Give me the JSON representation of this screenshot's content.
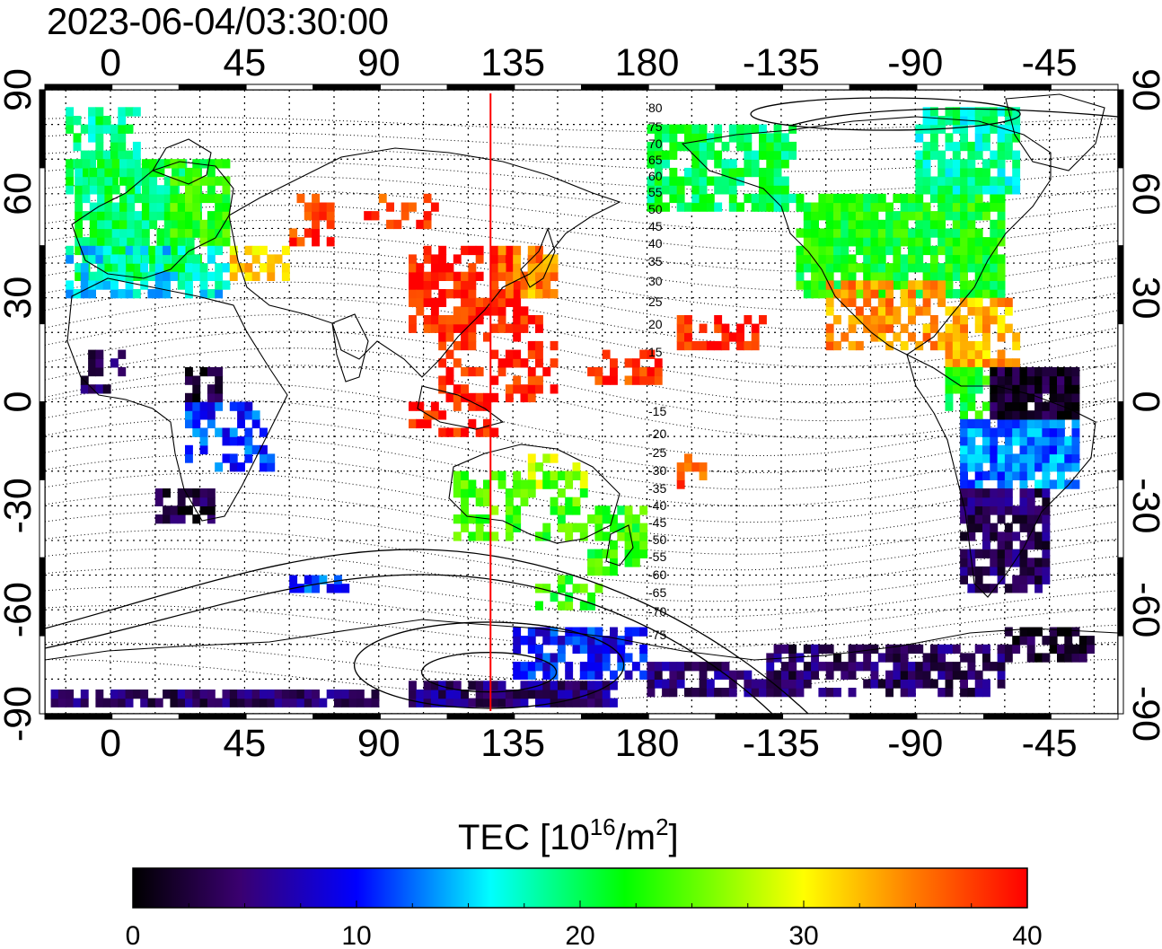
{
  "timestamp": "2023-06-04/03:30:00",
  "colorbar": {
    "label": "TEC",
    "unit_base": "[10",
    "unit_exp": "16",
    "unit_mid": "/m",
    "unit_exp2": "2",
    "unit_end": "]",
    "min": 0,
    "max": 40,
    "ticks": [
      "0",
      "10",
      "20",
      "30",
      "40"
    ],
    "colors": [
      "#000000",
      "#3a0070",
      "#0000ff",
      "#00ffff",
      "#00ff00",
      "#ffff00",
      "#ff7f00",
      "#ff0000"
    ]
  },
  "map": {
    "lon_labels_top": [
      "0",
      "45",
      "90",
      "135",
      "180",
      "-135",
      "-90",
      "-45"
    ],
    "lon_labels_bottom": [
      "0",
      "45",
      "90",
      "135",
      "180",
      "-135",
      "-90",
      "-45"
    ],
    "lat_labels": [
      "90",
      "60",
      "30",
      "0",
      "-30",
      "-60",
      "-90"
    ],
    "lon_range": [
      -22,
      338
    ],
    "lat_range": [
      -90,
      90
    ],
    "marker_longitude": 127.5,
    "marker_color": "#ff0000",
    "contour_labels": [
      "80",
      "75",
      "70",
      "65",
      "60",
      "55",
      "50",
      "45",
      "40",
      "35",
      "30",
      "25",
      "20",
      "15",
      "-15",
      "-20",
      "-25",
      "-30",
      "-35",
      "-40",
      "-45",
      "-50",
      "-55",
      "-60",
      "-65",
      "-70",
      "-75"
    ]
  }
}
